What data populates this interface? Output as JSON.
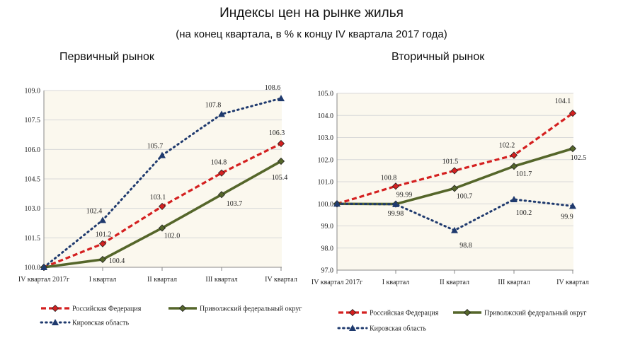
{
  "title": "Индексы цен на рынке жилья",
  "subtitle": "(на конец квартала, в % к концу IV квартала 2017 года)",
  "colors": {
    "rf": "#d42020",
    "pfo": "#55662a",
    "kirov": "#1f3a6e",
    "plot_bg": "#fbf8ee"
  },
  "chart_data": [
    {
      "type": "line",
      "title": "Первичный рынок",
      "categories": [
        "IV квартал 2017г",
        "I квартал",
        "II квартал",
        "III квартал",
        "IV квартал"
      ],
      "ylim": [
        100.0,
        109.0
      ],
      "yticks": [
        "100.0",
        "101.5",
        "103.0",
        "104.5",
        "106.0",
        "107.5",
        "109.0"
      ],
      "ytick_values": [
        100.0,
        101.5,
        103.0,
        104.5,
        106.0,
        107.5,
        109.0
      ],
      "series": [
        {
          "key": "rf",
          "name": "Российская Федерация",
          "values": [
            100.0,
            101.2,
            103.1,
            104.8,
            106.3
          ],
          "labels": [
            "",
            "101.2",
            "103.1",
            "104.8",
            "106.3"
          ]
        },
        {
          "key": "pfo",
          "name": "Приволжский федеральный округ",
          "values": [
            100.0,
            100.4,
            102.0,
            103.7,
            105.4
          ],
          "labels": [
            "",
            "100.4",
            "102.0",
            "103.7",
            "105.4"
          ]
        },
        {
          "key": "kirov",
          "name": "Кировская область",
          "values": [
            100.0,
            102.4,
            105.7,
            107.8,
            108.6
          ],
          "labels": [
            "",
            "102.4",
            "105.7",
            "107.8",
            "108.6"
          ]
        }
      ],
      "legend": "bottom"
    },
    {
      "type": "line",
      "title": "Вторичный рынок",
      "categories": [
        "IV квартал 2017г",
        "I квартал",
        "II квартал",
        "III квартал",
        "IV квартал"
      ],
      "ylim": [
        97.0,
        105.0
      ],
      "yticks": [
        "97.0",
        "98.0",
        "99.0",
        "100.0",
        "101.0",
        "102.0",
        "103.0",
        "104.0",
        "105.0"
      ],
      "ytick_values": [
        97.0,
        98.0,
        99.0,
        100.0,
        101.0,
        102.0,
        103.0,
        104.0,
        105.0
      ],
      "series": [
        {
          "key": "rf",
          "name": "Российская Федерация",
          "values": [
            100.0,
            100.8,
            101.5,
            102.2,
            104.1
          ],
          "labels": [
            "",
            "100.8",
            "101.5",
            "102.2",
            "104.1"
          ]
        },
        {
          "key": "pfo",
          "name": "Приволжский федеральный округ",
          "values": [
            100.0,
            99.99,
            100.7,
            101.7,
            102.5
          ],
          "labels": [
            "",
            "99.99",
            "100.7",
            "101.7",
            "102.5"
          ]
        },
        {
          "key": "kirov",
          "name": "Кировская область",
          "values": [
            100.0,
            99.98,
            98.8,
            100.2,
            99.9
          ],
          "labels": [
            "",
            "99.98",
            "98.8",
            "100.2",
            "99.9"
          ]
        }
      ],
      "legend": "bottom"
    }
  ]
}
